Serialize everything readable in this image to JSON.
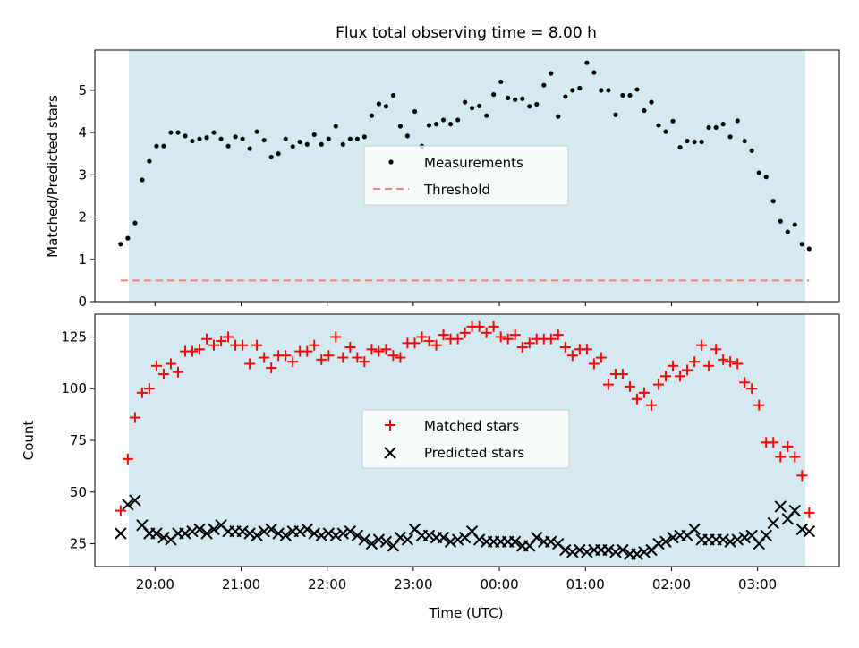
{
  "title": "Flux total observing time = 8.00 h",
  "colors": {
    "shade": "#d4eaf0",
    "measurement": "#000000",
    "threshold": "#f08080",
    "matched": "#ff0000",
    "predicted": "#000000"
  },
  "chart_data": [
    {
      "type": "scatter",
      "ylabel": "Matched/Predicted stars",
      "xlabel": "",
      "ylim": [
        0,
        5.95
      ],
      "yticks": [
        0,
        1,
        2,
        3,
        4,
        5
      ],
      "xlim_hours": [
        19.3,
        27.95
      ],
      "shade_hours": [
        19.6,
        27.6
      ],
      "legend_position": "center",
      "threshold": {
        "name": "Threshold",
        "value": 0.5
      },
      "series": [
        {
          "name": "Measurements",
          "x_hours": [
            19.6,
            19.683,
            19.767,
            19.85,
            19.933,
            20.017,
            20.1,
            20.183,
            20.267,
            20.35,
            20.433,
            20.517,
            20.6,
            20.683,
            20.767,
            20.85,
            20.933,
            21.017,
            21.1,
            21.183,
            21.267,
            21.35,
            21.433,
            21.517,
            21.6,
            21.683,
            21.767,
            21.85,
            21.933,
            22.017,
            22.1,
            22.183,
            22.267,
            22.35,
            22.433,
            22.517,
            22.6,
            22.683,
            22.767,
            22.85,
            22.933,
            23.017,
            23.1,
            23.183,
            23.267,
            23.35,
            23.433,
            23.517,
            23.6,
            23.683,
            23.767,
            23.85,
            23.933,
            24.017,
            24.1,
            24.183,
            24.267,
            24.35,
            24.433,
            24.517,
            24.6,
            24.683,
            24.767,
            24.85,
            24.933,
            25.017,
            25.1,
            25.183,
            25.267,
            25.35,
            25.433,
            25.517,
            25.6,
            25.683,
            25.767,
            25.85,
            25.933,
            26.017,
            26.1,
            26.183,
            26.267,
            26.35,
            26.433,
            26.517,
            26.6,
            26.683,
            26.767,
            26.85,
            26.933,
            27.017,
            27.1,
            27.183,
            27.267,
            27.35,
            27.433,
            27.517,
            27.6
          ],
          "y": [
            1.36,
            1.5,
            1.86,
            2.88,
            3.32,
            3.68,
            3.68,
            4.0,
            4.0,
            3.92,
            3.8,
            3.85,
            3.88,
            4.0,
            3.85,
            3.68,
            3.9,
            3.85,
            3.62,
            4.02,
            3.82,
            3.42,
            3.5,
            3.85,
            3.67,
            3.78,
            3.72,
            3.95,
            3.72,
            3.85,
            4.15,
            3.72,
            3.85,
            3.85,
            3.9,
            4.4,
            4.68,
            4.62,
            4.88,
            4.15,
            3.92,
            4.5,
            3.68,
            4.17,
            4.2,
            4.3,
            4.2,
            4.3,
            4.72,
            4.58,
            4.63,
            4.4,
            4.9,
            5.2,
            4.82,
            4.78,
            4.8,
            4.62,
            4.67,
            5.12,
            5.4,
            4.38,
            4.85,
            5.0,
            5.05,
            5.65,
            5.42,
            5.0,
            5.0,
            4.42,
            4.88,
            4.88,
            5.02,
            4.52,
            4.72,
            4.17,
            4.02,
            4.27,
            3.65,
            3.8,
            3.78,
            3.78,
            4.12,
            4.12,
            4.2,
            3.9,
            4.28,
            3.8,
            3.57,
            3.05,
            2.95,
            2.38,
            1.9,
            1.65,
            1.82,
            1.36,
            1.25
          ]
        }
      ]
    },
    {
      "type": "scatter",
      "ylabel": "Count",
      "xlabel": "Time (UTC)",
      "ylim": [
        14,
        136
      ],
      "yticks": [
        25,
        50,
        75,
        100,
        125
      ],
      "xlim_hours": [
        19.3,
        27.95
      ],
      "shade_hours": [
        19.6,
        27.6
      ],
      "legend_position": "center",
      "xticks_hours": [
        20,
        21,
        22,
        23,
        24,
        25,
        26,
        27
      ],
      "xtick_labels": [
        "20:00",
        "21:00",
        "22:00",
        "23:00",
        "00:00",
        "01:00",
        "02:00",
        "03:00"
      ],
      "series": [
        {
          "name": "Matched stars",
          "marker": "plus",
          "x_hours": [
            19.6,
            19.683,
            19.767,
            19.85,
            19.933,
            20.017,
            20.1,
            20.183,
            20.267,
            20.35,
            20.433,
            20.517,
            20.6,
            20.683,
            20.767,
            20.85,
            20.933,
            21.017,
            21.1,
            21.183,
            21.267,
            21.35,
            21.433,
            21.517,
            21.6,
            21.683,
            21.767,
            21.85,
            21.933,
            22.017,
            22.1,
            22.183,
            22.267,
            22.35,
            22.433,
            22.517,
            22.6,
            22.683,
            22.767,
            22.85,
            22.933,
            23.017,
            23.1,
            23.183,
            23.267,
            23.35,
            23.433,
            23.517,
            23.6,
            23.683,
            23.767,
            23.85,
            23.933,
            24.017,
            24.1,
            24.183,
            24.267,
            24.35,
            24.433,
            24.517,
            24.6,
            24.683,
            24.767,
            24.85,
            24.933,
            25.017,
            25.1,
            25.183,
            25.267,
            25.35,
            25.433,
            25.517,
            25.6,
            25.683,
            25.767,
            25.85,
            25.933,
            26.017,
            26.1,
            26.183,
            26.267,
            26.35,
            26.433,
            26.517,
            26.6,
            26.683,
            26.767,
            26.85,
            26.933,
            27.017,
            27.1,
            27.183,
            27.267,
            27.35,
            27.433,
            27.517,
            27.6
          ],
          "y": [
            41,
            66,
            86,
            98,
            100,
            111,
            107,
            112,
            108,
            118,
            118,
            119,
            124,
            121,
            123,
            125,
            121,
            121,
            112,
            121,
            115,
            110,
            116,
            116,
            113,
            118,
            118,
            121,
            114,
            116,
            125,
            115,
            120,
            115,
            113,
            119,
            118,
            119,
            116,
            115,
            122,
            122,
            125,
            123,
            121,
            126,
            124,
            124,
            127,
            130,
            130,
            127,
            130,
            125,
            124,
            126,
            120,
            122,
            124,
            124,
            124,
            126,
            120,
            116,
            119,
            119,
            112,
            115,
            102,
            107,
            107,
            101,
            95,
            98,
            92,
            102,
            106,
            111,
            106,
            109,
            113,
            121,
            111,
            119,
            114,
            113,
            112,
            103,
            100,
            92,
            74,
            74,
            67,
            72,
            67,
            58,
            40
          ]
        },
        {
          "name": "Predicted stars",
          "marker": "x",
          "x_hours": [
            19.6,
            19.683,
            19.767,
            19.85,
            19.933,
            20.017,
            20.1,
            20.183,
            20.267,
            20.35,
            20.433,
            20.517,
            20.6,
            20.683,
            20.767,
            20.85,
            20.933,
            21.017,
            21.1,
            21.183,
            21.267,
            21.35,
            21.433,
            21.517,
            21.6,
            21.683,
            21.767,
            21.85,
            21.933,
            22.017,
            22.1,
            22.183,
            22.267,
            22.35,
            22.433,
            22.517,
            22.6,
            22.683,
            22.767,
            22.85,
            22.933,
            23.017,
            23.1,
            23.183,
            23.267,
            23.35,
            23.433,
            23.517,
            23.6,
            23.683,
            23.767,
            23.85,
            23.933,
            24.017,
            24.1,
            24.183,
            24.267,
            24.35,
            24.433,
            24.517,
            24.6,
            24.683,
            24.767,
            24.85,
            24.933,
            25.017,
            25.1,
            25.183,
            25.267,
            25.35,
            25.433,
            25.517,
            25.6,
            25.683,
            25.767,
            25.85,
            25.933,
            26.017,
            26.1,
            26.183,
            26.267,
            26.35,
            26.433,
            26.517,
            26.6,
            26.683,
            26.767,
            26.85,
            26.933,
            27.017,
            27.1,
            27.183,
            27.267,
            27.35,
            27.433,
            27.517,
            27.6
          ],
          "y": [
            30,
            44,
            46,
            34,
            30,
            30,
            28,
            27,
            30,
            30,
            31,
            32,
            30,
            32,
            34,
            31,
            31,
            31,
            30,
            29,
            31,
            32,
            30,
            29,
            31,
            31,
            32,
            30,
            29,
            30,
            29,
            30,
            31,
            29,
            27,
            25,
            27,
            26,
            24,
            28,
            27,
            32,
            29,
            29,
            28,
            28,
            26,
            27,
            28,
            31,
            27,
            26,
            26,
            26,
            26,
            26,
            24,
            24,
            28,
            26,
            26,
            25,
            22,
            21,
            22,
            21,
            22,
            22,
            22,
            21,
            22,
            20,
            20,
            21,
            22,
            25,
            26,
            28,
            29,
            29,
            32,
            27,
            27,
            27,
            27,
            26,
            27,
            28,
            29,
            25,
            29,
            35,
            43,
            37,
            41,
            32,
            31
          ]
        }
      ]
    }
  ]
}
